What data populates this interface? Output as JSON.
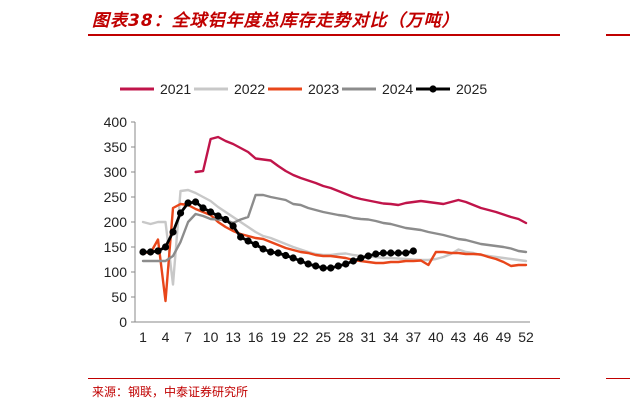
{
  "header": {
    "title": "图表38：全球铝年度总库存走势对比（万吨）"
  },
  "footer": {
    "source": "来源：钢联，中泰证券研究所"
  },
  "chart_data": {
    "type": "line",
    "title": "图表38：全球铝年度总库存走势对比（万吨）",
    "xlabel": "",
    "ylabel": "",
    "xlim": [
      1,
      52
    ],
    "ylim": [
      0,
      400
    ],
    "yticks": [
      0,
      50,
      100,
      150,
      200,
      250,
      300,
      350,
      400
    ],
    "xticks": [
      1,
      4,
      7,
      10,
      13,
      16,
      19,
      22,
      25,
      28,
      31,
      34,
      37,
      40,
      43,
      46,
      49,
      52
    ],
    "grid": false,
    "legend": "top",
    "series": [
      {
        "name": "2021",
        "color": "#c0144a",
        "marker": false,
        "x": [
          8,
          9,
          10,
          11,
          12,
          13,
          14,
          15,
          16,
          17,
          18,
          19,
          20,
          21,
          22,
          23,
          24,
          25,
          26,
          27,
          28,
          29,
          30,
          31,
          32,
          33,
          34,
          35,
          36,
          37,
          38,
          39,
          40,
          41,
          42,
          43,
          44,
          45,
          46,
          47,
          48,
          49,
          50,
          51,
          52
        ],
        "values": [
          300,
          302,
          366,
          370,
          362,
          356,
          348,
          340,
          327,
          325,
          323,
          312,
          302,
          294,
          288,
          283,
          278,
          272,
          268,
          262,
          256,
          250,
          246,
          243,
          240,
          237,
          236,
          234,
          238,
          240,
          242,
          240,
          238,
          236,
          240,
          244,
          240,
          234,
          228,
          224,
          220,
          215,
          210,
          206,
          198
        ]
      },
      {
        "name": "2022",
        "color": "#c8c8c8",
        "marker": false,
        "x": [
          1,
          2,
          3,
          4,
          5,
          6,
          7,
          8,
          9,
          10,
          11,
          12,
          13,
          14,
          15,
          16,
          17,
          18,
          19,
          20,
          21,
          22,
          23,
          24,
          25,
          26,
          27,
          28,
          29,
          30,
          31,
          32,
          33,
          34,
          35,
          36,
          37,
          38,
          39,
          40,
          41,
          42,
          43,
          44,
          45,
          46,
          47,
          48,
          49,
          50,
          51,
          52
        ],
        "values": [
          200,
          196,
          200,
          200,
          75,
          262,
          264,
          258,
          250,
          242,
          230,
          220,
          210,
          200,
          190,
          180,
          172,
          168,
          162,
          156,
          150,
          145,
          140,
          136,
          134,
          134,
          136,
          137,
          134,
          132,
          131,
          130,
          128,
          128,
          127,
          126,
          125,
          124,
          124,
          126,
          130,
          136,
          145,
          140,
          138,
          134,
          132,
          130,
          128,
          126,
          124,
          122
        ]
      },
      {
        "name": "2023",
        "color": "#e8461a",
        "marker": false,
        "x": [
          1,
          2,
          3,
          4,
          5,
          6,
          7,
          8,
          9,
          10,
          11,
          12,
          13,
          14,
          15,
          16,
          17,
          18,
          19,
          20,
          21,
          22,
          23,
          24,
          25,
          26,
          27,
          28,
          29,
          30,
          31,
          32,
          33,
          34,
          35,
          36,
          37,
          38,
          39,
          40,
          41,
          42,
          43,
          44,
          45,
          46,
          47,
          48,
          49,
          50,
          51,
          52
        ],
        "values": [
          140,
          138,
          165,
          42,
          228,
          236,
          234,
          226,
          220,
          214,
          200,
          190,
          182,
          176,
          172,
          168,
          166,
          160,
          154,
          148,
          144,
          140,
          138,
          134,
          132,
          132,
          130,
          128,
          124,
          122,
          120,
          118,
          118,
          120,
          120,
          122,
          122,
          123,
          114,
          140,
          140,
          138,
          138,
          136,
          136,
          135,
          130,
          126,
          120,
          112,
          114,
          114
        ]
      },
      {
        "name": "2024",
        "color": "#8c8c8c",
        "marker": false,
        "x": [
          1,
          2,
          3,
          4,
          5,
          6,
          7,
          8,
          9,
          10,
          11,
          12,
          13,
          14,
          15,
          16,
          17,
          18,
          19,
          20,
          21,
          22,
          23,
          24,
          25,
          26,
          27,
          28,
          29,
          30,
          31,
          32,
          33,
          34,
          35,
          36,
          37,
          38,
          39,
          40,
          41,
          42,
          43,
          44,
          45,
          46,
          47,
          48,
          49,
          50,
          51,
          52
        ],
        "values": [
          122,
          122,
          122,
          122,
          132,
          160,
          200,
          216,
          212,
          206,
          205,
          204,
          198,
          205,
          210,
          254,
          254,
          250,
          247,
          244,
          236,
          234,
          228,
          224,
          220,
          217,
          214,
          212,
          208,
          206,
          205,
          202,
          198,
          196,
          192,
          188,
          186,
          184,
          180,
          177,
          174,
          170,
          166,
          164,
          160,
          156,
          154,
          152,
          150,
          147,
          142,
          140
        ]
      },
      {
        "name": "2025",
        "color": "#000000",
        "marker": true,
        "x": [
          1,
          2,
          3,
          4,
          5,
          6,
          7,
          8,
          9,
          10,
          11,
          12,
          13,
          14,
          15,
          16,
          17,
          18,
          19,
          20,
          21,
          22,
          23,
          24,
          25,
          26,
          27,
          28,
          29,
          30,
          31,
          32,
          33,
          34,
          35,
          36,
          37
        ],
        "values": [
          140,
          140,
          142,
          150,
          180,
          218,
          238,
          240,
          228,
          220,
          212,
          205,
          192,
          170,
          162,
          155,
          146,
          140,
          138,
          133,
          128,
          122,
          116,
          112,
          108,
          108,
          112,
          116,
          122,
          128,
          132,
          136,
          138,
          138,
          138,
          138,
          142
        ]
      }
    ]
  }
}
